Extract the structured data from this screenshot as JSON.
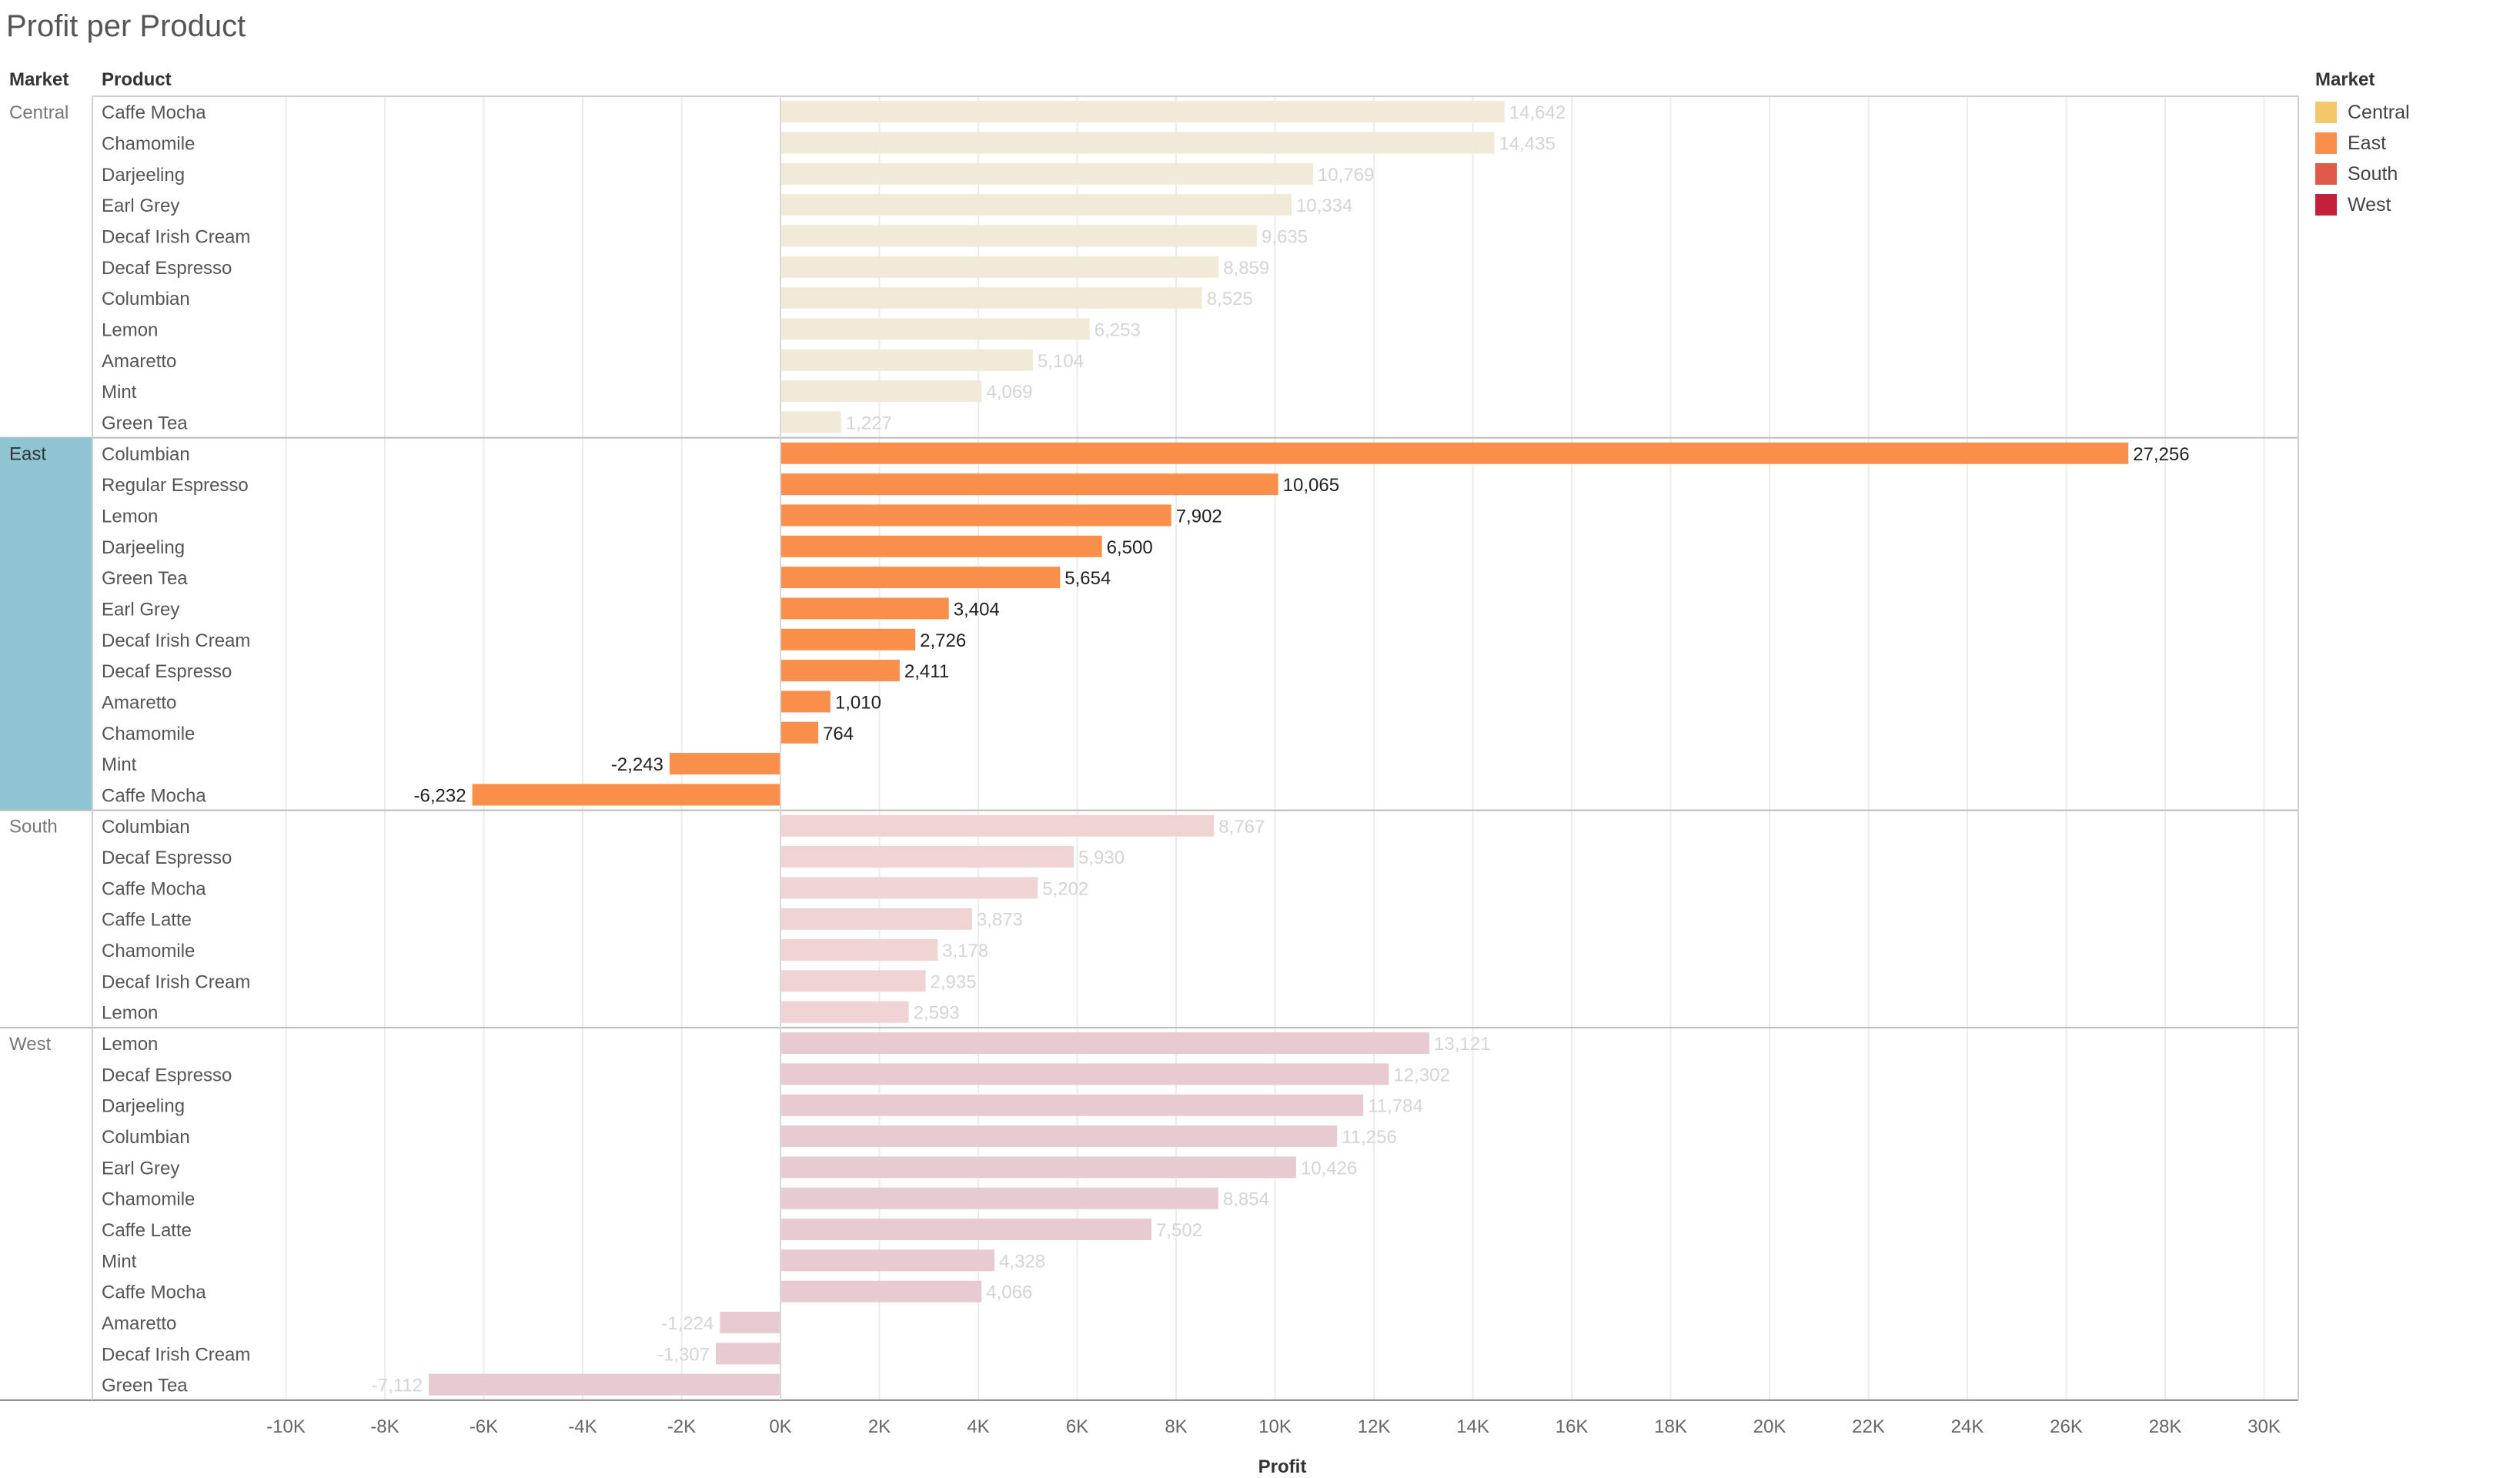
{
  "title": "Profit per Product",
  "headers": {
    "market": "Market",
    "product": "Product"
  },
  "legend": {
    "title": "Market",
    "items": [
      {
        "label": "Central",
        "color": "#f2c86b"
      },
      {
        "label": "East",
        "color": "#f98f4a"
      },
      {
        "label": "South",
        "color": "#e05a4a"
      },
      {
        "label": "West",
        "color": "#c4203c"
      }
    ]
  },
  "chart_data": {
    "type": "bar",
    "orientation": "horizontal",
    "xlabel": "Profit",
    "xlim": [
      -11000,
      30500
    ],
    "x_ticks": [
      {
        "value": -10000,
        "label": "-10K"
      },
      {
        "value": -8000,
        "label": "-8K"
      },
      {
        "value": -6000,
        "label": "-6K"
      },
      {
        "value": -4000,
        "label": "-4K"
      },
      {
        "value": -2000,
        "label": "-2K"
      },
      {
        "value": 0,
        "label": "0K"
      },
      {
        "value": 2000,
        "label": "2K"
      },
      {
        "value": 4000,
        "label": "4K"
      },
      {
        "value": 6000,
        "label": "6K"
      },
      {
        "value": 8000,
        "label": "8K"
      },
      {
        "value": 10000,
        "label": "10K"
      },
      {
        "value": 12000,
        "label": "12K"
      },
      {
        "value": 14000,
        "label": "14K"
      },
      {
        "value": 16000,
        "label": "16K"
      },
      {
        "value": 18000,
        "label": "18K"
      },
      {
        "value": 20000,
        "label": "20K"
      },
      {
        "value": 22000,
        "label": "22K"
      },
      {
        "value": 24000,
        "label": "24K"
      },
      {
        "value": 26000,
        "label": "26K"
      },
      {
        "value": 28000,
        "label": "28K"
      },
      {
        "value": 30000,
        "label": "30K"
      }
    ],
    "highlighted_market": "East",
    "bar_colors": {
      "Central": "#f2ead8",
      "East": "#fa8f4b",
      "South": "#f0d3d3",
      "West": "#e8cad1"
    },
    "groups": [
      {
        "market": "Central",
        "rows": [
          {
            "product": "Caffe Mocha",
            "value": 14642,
            "label": "14,642"
          },
          {
            "product": "Chamomile",
            "value": 14435,
            "label": "14,435"
          },
          {
            "product": "Darjeeling",
            "value": 10769,
            "label": "10,769"
          },
          {
            "product": "Earl Grey",
            "value": 10334,
            "label": "10,334"
          },
          {
            "product": "Decaf Irish Cream",
            "value": 9635,
            "label": "9,635"
          },
          {
            "product": "Decaf Espresso",
            "value": 8859,
            "label": "8,859"
          },
          {
            "product": "Columbian",
            "value": 8525,
            "label": "8,525"
          },
          {
            "product": "Lemon",
            "value": 6253,
            "label": "6,253"
          },
          {
            "product": "Amaretto",
            "value": 5104,
            "label": "5,104"
          },
          {
            "product": "Mint",
            "value": 4069,
            "label": "4,069"
          },
          {
            "product": "Green Tea",
            "value": 1227,
            "label": "1,227"
          }
        ]
      },
      {
        "market": "East",
        "rows": [
          {
            "product": "Columbian",
            "value": 27256,
            "label": "27,256"
          },
          {
            "product": "Regular Espresso",
            "value": 10065,
            "label": "10,065"
          },
          {
            "product": "Lemon",
            "value": 7902,
            "label": "7,902"
          },
          {
            "product": "Darjeeling",
            "value": 6500,
            "label": "6,500"
          },
          {
            "product": "Green Tea",
            "value": 5654,
            "label": "5,654"
          },
          {
            "product": "Earl Grey",
            "value": 3404,
            "label": "3,404"
          },
          {
            "product": "Decaf Irish Cream",
            "value": 2726,
            "label": "2,726"
          },
          {
            "product": "Decaf Espresso",
            "value": 2411,
            "label": "2,411"
          },
          {
            "product": "Amaretto",
            "value": 1010,
            "label": "1,010"
          },
          {
            "product": "Chamomile",
            "value": 764,
            "label": "764"
          },
          {
            "product": "Mint",
            "value": -2243,
            "label": "-2,243"
          },
          {
            "product": "Caffe Mocha",
            "value": -6232,
            "label": "-6,232"
          }
        ]
      },
      {
        "market": "South",
        "rows": [
          {
            "product": "Columbian",
            "value": 8767,
            "label": "8,767"
          },
          {
            "product": "Decaf Espresso",
            "value": 5930,
            "label": "5,930"
          },
          {
            "product": "Caffe Mocha",
            "value": 5202,
            "label": "5,202"
          },
          {
            "product": "Caffe Latte",
            "value": 3873,
            "label": "3,873"
          },
          {
            "product": "Chamomile",
            "value": 3178,
            "label": "3,178"
          },
          {
            "product": "Decaf Irish Cream",
            "value": 2935,
            "label": "2,935"
          },
          {
            "product": "Lemon",
            "value": 2593,
            "label": "2,593"
          }
        ]
      },
      {
        "market": "West",
        "rows": [
          {
            "product": "Lemon",
            "value": 13121,
            "label": "13,121"
          },
          {
            "product": "Decaf Espresso",
            "value": 12302,
            "label": "12,302"
          },
          {
            "product": "Darjeeling",
            "value": 11784,
            "label": "11,784"
          },
          {
            "product": "Columbian",
            "value": 11256,
            "label": "11,256"
          },
          {
            "product": "Earl Grey",
            "value": 10426,
            "label": "10,426"
          },
          {
            "product": "Chamomile",
            "value": 8854,
            "label": "8,854"
          },
          {
            "product": "Caffe Latte",
            "value": 7502,
            "label": "7,502"
          },
          {
            "product": "Mint",
            "value": 4328,
            "label": "4,328"
          },
          {
            "product": "Caffe Mocha",
            "value": 4066,
            "label": "4,066"
          },
          {
            "product": "Amaretto",
            "value": -1224,
            "label": "-1,224"
          },
          {
            "product": "Decaf Irish Cream",
            "value": -1307,
            "label": "-1,307"
          },
          {
            "product": "Green Tea",
            "value": -7112,
            "label": "-7,112"
          }
        ]
      }
    ]
  }
}
